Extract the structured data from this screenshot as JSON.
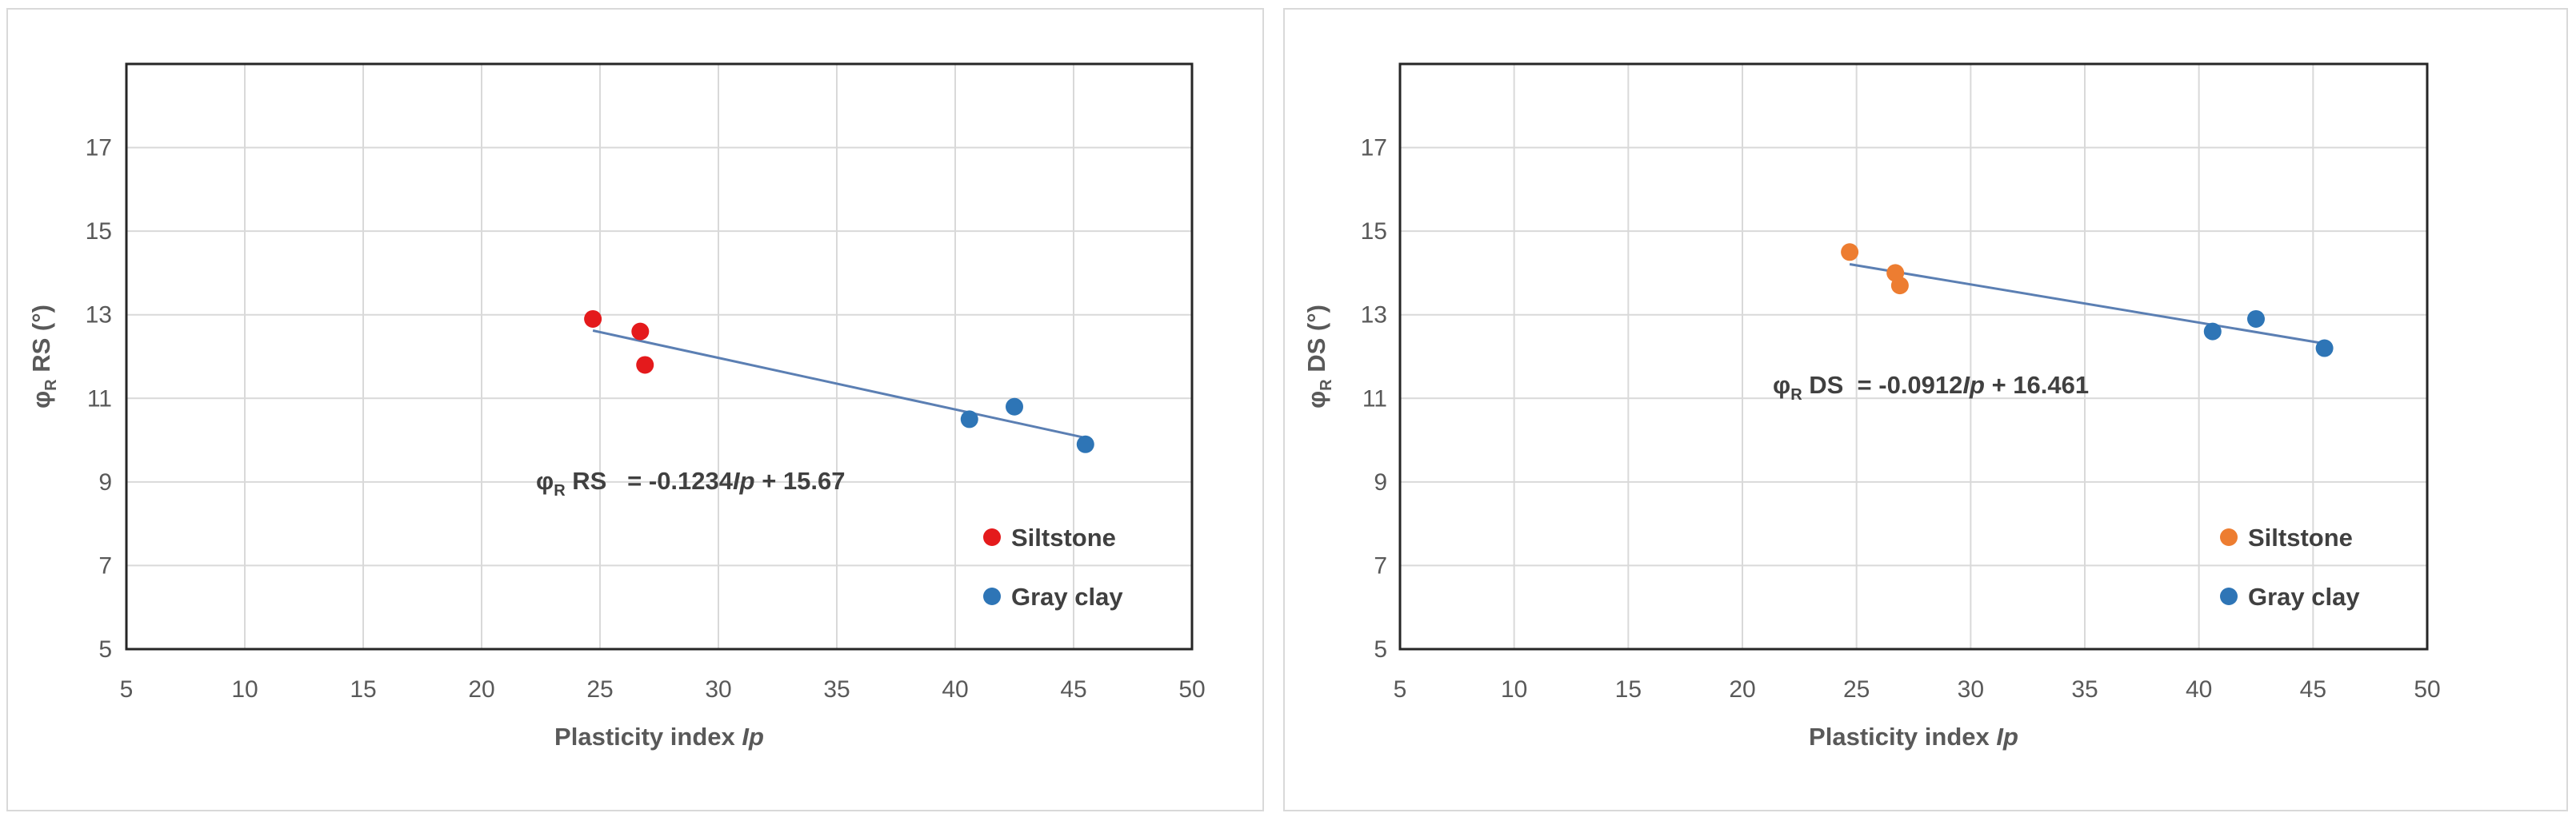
{
  "chart_data": [
    {
      "type": "scatter",
      "title": "",
      "xlabel": "Plasticity index Ip",
      "xlabel_prefix": "Plasticity index ",
      "xlabel_var": "Ip",
      "ylabel_main": "φ",
      "ylabel_sub": "R",
      "ylabel_rest": " RS (°)",
      "xlim": [
        5,
        50
      ],
      "ylim": [
        5,
        19
      ],
      "x_ticks": [
        5,
        10,
        15,
        20,
        25,
        30,
        35,
        40,
        45,
        50
      ],
      "y_ticks": [
        5,
        7,
        9,
        11,
        13,
        15,
        17
      ],
      "grid": true,
      "legend_position": "bottom-right",
      "series": [
        {
          "name": "Siltstone",
          "color": "#e41a1c",
          "points": [
            [
              24.7,
              12.9
            ],
            [
              26.7,
              12.6
            ],
            [
              26.9,
              11.8
            ]
          ]
        },
        {
          "name": "Gray clay",
          "color": "#2e75b6",
          "points": [
            [
              40.6,
              10.5
            ],
            [
              42.5,
              10.8
            ],
            [
              45.5,
              9.9
            ]
          ]
        }
      ],
      "trendline": {
        "slope": -0.1234,
        "intercept": 15.67,
        "x_range": [
          24.7,
          45.5
        ],
        "color": "#5b7fb3"
      },
      "equation": {
        "lead": "φ",
        "sub": "R",
        "mid": " RS   = -0.1234",
        "var": "Ip",
        "tail": " + 15.67"
      }
    },
    {
      "type": "scatter",
      "title": "",
      "xlabel": "Plasticity index Ip",
      "xlabel_prefix": "Plasticity index ",
      "xlabel_var": "Ip",
      "ylabel_main": "φ",
      "ylabel_sub": "R",
      "ylabel_rest": " DS (°)",
      "xlim": [
        5,
        50
      ],
      "ylim": [
        5,
        19
      ],
      "x_ticks": [
        5,
        10,
        15,
        20,
        25,
        30,
        35,
        40,
        45,
        50
      ],
      "y_ticks": [
        5,
        7,
        9,
        11,
        13,
        15,
        17
      ],
      "grid": true,
      "legend_position": "bottom-right",
      "series": [
        {
          "name": "Siltstone",
          "color": "#ed7d31",
          "points": [
            [
              24.7,
              14.5
            ],
            [
              26.7,
              14.0
            ],
            [
              26.9,
              13.7
            ]
          ]
        },
        {
          "name": "Gray clay",
          "color": "#2e75b6",
          "points": [
            [
              40.6,
              12.6
            ],
            [
              42.5,
              12.9
            ],
            [
              45.5,
              12.2
            ]
          ]
        }
      ],
      "trendline": {
        "slope": -0.0912,
        "intercept": 16.461,
        "x_range": [
          24.7,
          45.5
        ],
        "color": "#5b7fb3"
      },
      "equation": {
        "lead": "φ",
        "sub": "R",
        "mid": " DS  = -0.0912",
        "var": "Ip",
        "tail": " + 16.461"
      }
    }
  ]
}
